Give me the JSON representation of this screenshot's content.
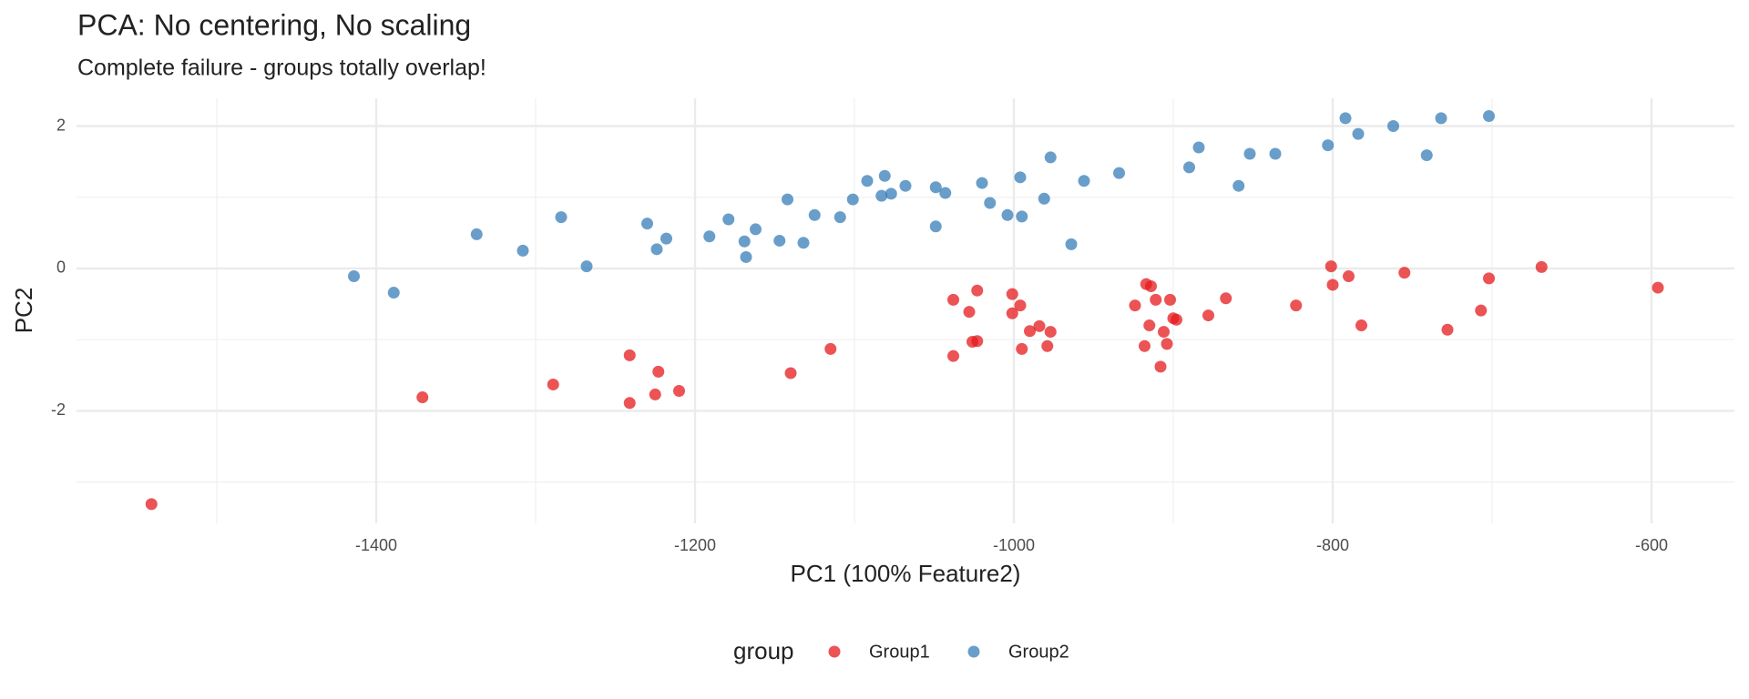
{
  "chart_data": {
    "type": "scatter",
    "title": "PCA: No centering, No scaling",
    "subtitle": "Complete failure - groups totally overlap!",
    "x_label": "PC1 (100% Feature2)",
    "y_label": "PC2",
    "legend_title": "group",
    "legend_position": "bottom",
    "grid": true,
    "xlim": [
      -1588,
      -548
    ],
    "ylim": [
      -3.58,
      2.39
    ],
    "xticks": [
      -1400,
      -1200,
      -1000,
      -800,
      -600
    ],
    "yticks": [
      2,
      0,
      -2
    ],
    "x_minor_ticks": [
      -1500,
      -1300,
      -1100,
      -900,
      -700
    ],
    "y_minor_ticks": [
      1,
      -1,
      -3
    ],
    "series": [
      {
        "name": "Group1",
        "color": "#E41A1C",
        "x": [
          -1541,
          -1371,
          -1289,
          -1241,
          -1241,
          -1223,
          -1225,
          -1210,
          -1140,
          -1115,
          -1038,
          -1038,
          -1028,
          -1026,
          -1023,
          -1023,
          -1001,
          -1001,
          -996,
          -995,
          -990,
          -984,
          -977,
          -979,
          -917,
          -914,
          -924,
          -911,
          -902,
          -915,
          -918,
          -906,
          -904,
          -908,
          -900,
          -898,
          -878,
          -867,
          -823,
          -801,
          -800,
          -790,
          -782,
          -755,
          -728,
          -707,
          -702,
          -669,
          -596
        ],
        "y": [
          -3.31,
          -1.81,
          -1.63,
          -1.22,
          -1.89,
          -1.45,
          -1.77,
          -1.72,
          -1.47,
          -1.13,
          -0.44,
          -1.23,
          -0.61,
          -1.03,
          -1.02,
          -0.31,
          -0.36,
          -0.63,
          -0.52,
          -1.13,
          -0.88,
          -0.81,
          -0.89,
          -1.09,
          -0.22,
          -0.25,
          -0.52,
          -0.44,
          -0.44,
          -0.8,
          -1.09,
          -0.89,
          -1.06,
          -1.38,
          -0.7,
          -0.72,
          -0.66,
          -0.42,
          -0.52,
          0.03,
          -0.23,
          -0.11,
          -0.8,
          -0.06,
          -0.86,
          -0.59,
          -0.14,
          0.02,
          -0.27
        ]
      },
      {
        "name": "Group2",
        "color": "#377EB8",
        "x": [
          -1414,
          -1389,
          -1337,
          -1308,
          -1284,
          -1268,
          -1230,
          -1224,
          -1218,
          -1191,
          -1179,
          -1169,
          -1168,
          -1162,
          -1147,
          -1142,
          -1132,
          -1125,
          -1109,
          -1101,
          -1092,
          -1083,
          -1081,
          -1077,
          -1068,
          -1049,
          -1049,
          -1043,
          -1020,
          -1015,
          -1004,
          -996,
          -995,
          -981,
          -977,
          -956,
          -964,
          -934,
          -890,
          -884,
          -859,
          -852,
          -836,
          -803,
          -792,
          -784,
          -762,
          -741,
          -732,
          -702
        ],
        "y": [
          -0.11,
          -0.34,
          0.48,
          0.25,
          0.72,
          0.03,
          0.63,
          0.27,
          0.42,
          0.45,
          0.69,
          0.38,
          0.16,
          0.55,
          0.39,
          0.97,
          0.36,
          0.75,
          0.72,
          0.97,
          1.23,
          1.02,
          1.3,
          1.05,
          1.16,
          1.14,
          0.59,
          1.06,
          1.2,
          0.92,
          0.75,
          1.28,
          0.73,
          0.98,
          1.56,
          1.23,
          0.34,
          1.34,
          1.42,
          1.7,
          1.16,
          1.61,
          1.61,
          1.73,
          2.11,
          1.89,
          2.0,
          1.59,
          2.11,
          2.14
        ]
      }
    ]
  }
}
